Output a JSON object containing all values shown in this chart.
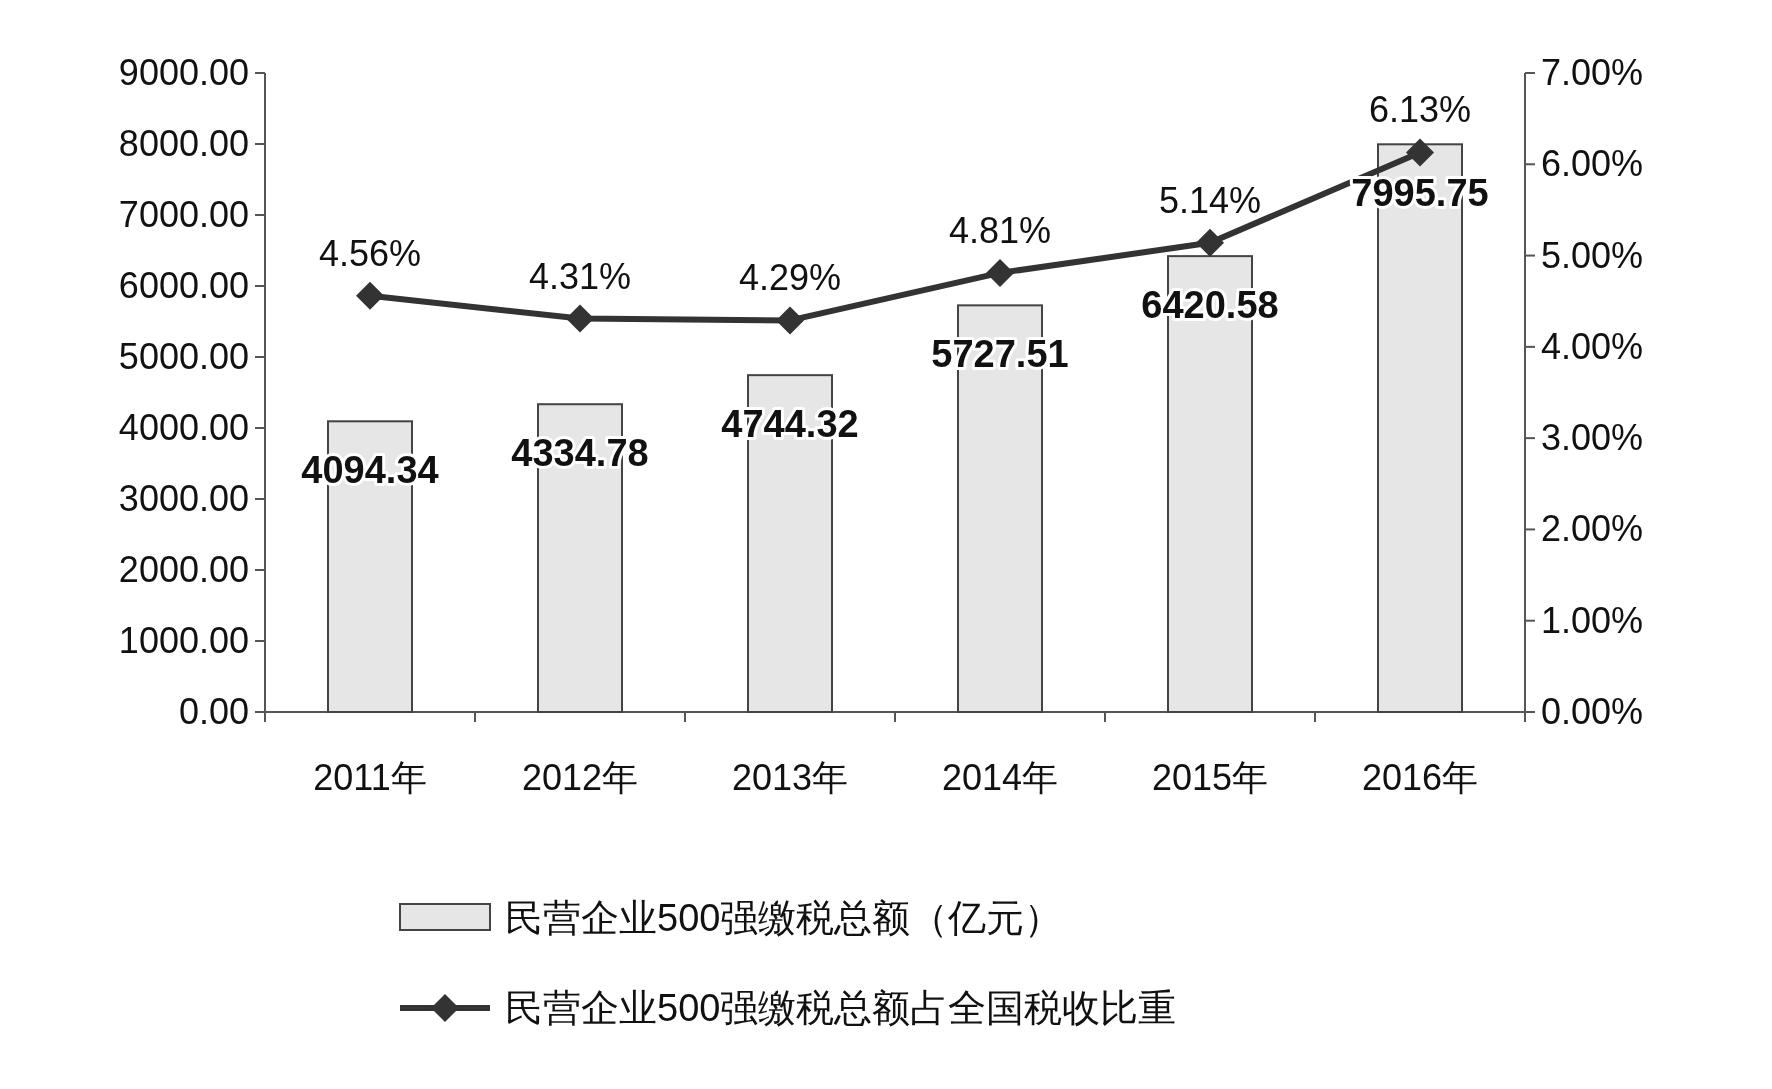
{
  "chart_data": {
    "type": "bar",
    "categories": [
      "2011年",
      "2012年",
      "2013年",
      "2014年",
      "2015年",
      "2016年"
    ],
    "series": [
      {
        "name": "民营企业500强缴税总额（亿元）",
        "color": "#e6e6e6",
        "values": [
          4094.34,
          4334.78,
          4744.32,
          5727.51,
          6420.58,
          7995.75
        ],
        "value_labels": [
          "4094.34",
          "4334.78",
          "4744.32",
          "5727.51",
          "6420.58",
          "7995.75"
        ]
      },
      {
        "name": "民营企业500强缴税总额占全国税收比重",
        "type": "line",
        "axis": "y2",
        "color": "#333333",
        "marker": "diamond",
        "line_style": "solid",
        "values": [
          4.56,
          4.31,
          4.29,
          4.81,
          5.14,
          6.13
        ],
        "value_labels": [
          "4.56%",
          "4.31%",
          "4.29%",
          "4.81%",
          "5.14%",
          "6.13%"
        ]
      }
    ],
    "ylim": [
      0,
      9000
    ],
    "yticks": [
      {
        "value": 0,
        "label": "0.00"
      },
      {
        "value": 1000,
        "label": "1000.00"
      },
      {
        "value": 2000,
        "label": "2000.00"
      },
      {
        "value": 3000,
        "label": "3000.00"
      },
      {
        "value": 4000,
        "label": "4000.00"
      },
      {
        "value": 5000,
        "label": "5000.00"
      },
      {
        "value": 6000,
        "label": "6000.00"
      },
      {
        "value": 7000,
        "label": "7000.00"
      },
      {
        "value": 8000,
        "label": "8000.00"
      },
      {
        "value": 9000,
        "label": "9000.00"
      }
    ],
    "y2lim": [
      0,
      7
    ],
    "y2ticks": [
      {
        "value": 0,
        "label": "0.00%"
      },
      {
        "value": 1,
        "label": "1.00%"
      },
      {
        "value": 2,
        "label": "2.00%"
      },
      {
        "value": 3,
        "label": "3.00%"
      },
      {
        "value": 4,
        "label": "4.00%"
      },
      {
        "value": 5,
        "label": "5.00%"
      },
      {
        "value": 6,
        "label": "6.00%"
      },
      {
        "value": 7,
        "label": "7.00%"
      }
    ],
    "legend": "bottom"
  }
}
